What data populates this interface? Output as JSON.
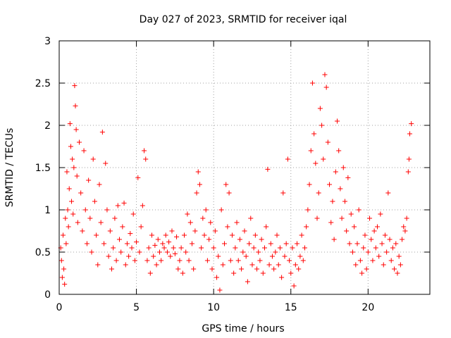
{
  "chart_data": {
    "type": "scatter",
    "title": "Day 027 of 2023, SRMTID for receiver iqal",
    "xlabel": "GPS time / hours",
    "ylabel": "SRMTID / TECUs",
    "xlim": [
      0,
      24
    ],
    "ylim": [
      0,
      3
    ],
    "xticks": [
      0,
      5,
      10,
      15,
      20
    ],
    "xtick_labels": [
      "0",
      "5",
      "10",
      "15",
      "20"
    ],
    "yticks": [
      0,
      0.5,
      1,
      1.5,
      2,
      2.5,
      3
    ],
    "ytick_labels": [
      "0",
      "0.5",
      "1",
      "1.5",
      "2",
      "2.5",
      "3"
    ],
    "grid": true,
    "marker": "plus",
    "color": "#ff0000",
    "series": [
      {
        "name": "SRMTID",
        "points": [
          [
            0.1,
            0.55
          ],
          [
            0.15,
            0.4
          ],
          [
            0.2,
            0.2
          ],
          [
            0.25,
            0.7
          ],
          [
            0.3,
            0.3
          ],
          [
            0.35,
            0.12
          ],
          [
            0.4,
            0.9
          ],
          [
            0.45,
            0.6
          ],
          [
            0.5,
            1.45
          ],
          [
            0.55,
            1.0
          ],
          [
            0.6,
            0.8
          ],
          [
            0.65,
            1.25
          ],
          [
            0.7,
            2.02
          ],
          [
            0.75,
            1.75
          ],
          [
            0.8,
            1.1
          ],
          [
            0.85,
            1.6
          ],
          [
            0.9,
            0.95
          ],
          [
            0.95,
            1.5
          ],
          [
            1.0,
            2.47
          ],
          [
            1.05,
            2.23
          ],
          [
            1.1,
            1.95
          ],
          [
            1.15,
            1.4
          ],
          [
            1.2,
            0.85
          ],
          [
            1.3,
            1.8
          ],
          [
            1.4,
            1.2
          ],
          [
            1.5,
            0.75
          ],
          [
            1.6,
            1.7
          ],
          [
            1.7,
            1.0
          ],
          [
            1.8,
            0.6
          ],
          [
            1.9,
            1.35
          ],
          [
            2.0,
            0.9
          ],
          [
            2.1,
            0.5
          ],
          [
            2.2,
            1.6
          ],
          [
            2.3,
            1.1
          ],
          [
            2.4,
            0.7
          ],
          [
            2.5,
            0.35
          ],
          [
            2.6,
            1.3
          ],
          [
            2.7,
            0.85
          ],
          [
            2.8,
            1.92
          ],
          [
            2.9,
            0.6
          ],
          [
            3.0,
            1.55
          ],
          [
            3.1,
            1.0
          ],
          [
            3.2,
            0.45
          ],
          [
            3.3,
            0.75
          ],
          [
            3.4,
            0.3
          ],
          [
            3.5,
            0.55
          ],
          [
            3.6,
            0.9
          ],
          [
            3.7,
            0.4
          ],
          [
            3.8,
            1.05
          ],
          [
            3.9,
            0.65
          ],
          [
            4.0,
            0.5
          ],
          [
            4.1,
            0.8
          ],
          [
            4.2,
            1.08
          ],
          [
            4.3,
            0.35
          ],
          [
            4.4,
            0.6
          ],
          [
            4.5,
            0.45
          ],
          [
            4.6,
            0.72
          ],
          [
            4.7,
            0.55
          ],
          [
            4.8,
            0.95
          ],
          [
            4.9,
            0.4
          ],
          [
            5.0,
            0.62
          ],
          [
            5.1,
            1.38
          ],
          [
            5.2,
            0.5
          ],
          [
            5.3,
            0.8
          ],
          [
            5.4,
            1.05
          ],
          [
            5.5,
            1.7
          ],
          [
            5.6,
            1.6
          ],
          [
            5.7,
            0.4
          ],
          [
            5.8,
            0.55
          ],
          [
            5.9,
            0.25
          ],
          [
            6.0,
            0.7
          ],
          [
            6.1,
            0.45
          ],
          [
            6.2,
            0.58
          ],
          [
            6.3,
            0.35
          ],
          [
            6.4,
            0.65
          ],
          [
            6.5,
            0.5
          ],
          [
            6.6,
            0.4
          ],
          [
            6.7,
            0.6
          ],
          [
            6.8,
            0.55
          ],
          [
            6.9,
            0.7
          ],
          [
            7.0,
            0.5
          ],
          [
            7.1,
            0.62
          ],
          [
            7.2,
            0.45
          ],
          [
            7.3,
            0.75
          ],
          [
            7.4,
            0.55
          ],
          [
            7.5,
            0.48
          ],
          [
            7.6,
            0.68
          ],
          [
            7.7,
            0.3
          ],
          [
            7.8,
            0.4
          ],
          [
            7.9,
            0.55
          ],
          [
            8.0,
            0.25
          ],
          [
            8.1,
            0.7
          ],
          [
            8.2,
            0.5
          ],
          [
            8.3,
            0.95
          ],
          [
            8.4,
            0.4
          ],
          [
            8.5,
            0.85
          ],
          [
            8.6,
            0.6
          ],
          [
            8.7,
            0.3
          ],
          [
            8.8,
            0.75
          ],
          [
            8.9,
            1.2
          ],
          [
            9.0,
            1.45
          ],
          [
            9.1,
            1.3
          ],
          [
            9.2,
            0.55
          ],
          [
            9.3,
            0.9
          ],
          [
            9.4,
            0.7
          ],
          [
            9.5,
            1.0
          ],
          [
            9.6,
            0.4
          ],
          [
            9.7,
            0.65
          ],
          [
            9.8,
            0.85
          ],
          [
            9.9,
            0.3
          ],
          [
            10.0,
            0.55
          ],
          [
            10.1,
            0.75
          ],
          [
            10.2,
            0.2
          ],
          [
            10.3,
            0.45
          ],
          [
            10.4,
            0.05
          ],
          [
            10.5,
            1.0
          ],
          [
            10.6,
            0.35
          ],
          [
            10.7,
            0.6
          ],
          [
            10.8,
            1.3
          ],
          [
            10.9,
            0.8
          ],
          [
            11.0,
            1.2
          ],
          [
            11.1,
            0.4
          ],
          [
            11.2,
            0.7
          ],
          [
            11.3,
            0.25
          ],
          [
            11.4,
            0.55
          ],
          [
            11.5,
            0.85
          ],
          [
            11.6,
            0.4
          ],
          [
            11.7,
            0.65
          ],
          [
            11.8,
            0.3
          ],
          [
            11.9,
            0.5
          ],
          [
            12.0,
            0.75
          ],
          [
            12.1,
            0.45
          ],
          [
            12.2,
            0.15
          ],
          [
            12.3,
            0.6
          ],
          [
            12.4,
            0.9
          ],
          [
            12.5,
            0.35
          ],
          [
            12.6,
            0.55
          ],
          [
            12.7,
            0.7
          ],
          [
            12.8,
            0.3
          ],
          [
            12.9,
            0.5
          ],
          [
            13.0,
            0.4
          ],
          [
            13.1,
            0.65
          ],
          [
            13.2,
            0.25
          ],
          [
            13.3,
            0.55
          ],
          [
            13.4,
            0.8
          ],
          [
            13.5,
            1.48
          ],
          [
            13.6,
            0.35
          ],
          [
            13.7,
            0.6
          ],
          [
            13.8,
            0.45
          ],
          [
            13.9,
            0.3
          ],
          [
            14.0,
            0.5
          ],
          [
            14.1,
            0.7
          ],
          [
            14.2,
            0.35
          ],
          [
            14.3,
            0.55
          ],
          [
            14.4,
            0.2
          ],
          [
            14.5,
            1.2
          ],
          [
            14.6,
            0.45
          ],
          [
            14.7,
            0.6
          ],
          [
            14.8,
            1.6
          ],
          [
            14.9,
            0.4
          ],
          [
            15.0,
            0.25
          ],
          [
            15.1,
            0.55
          ],
          [
            15.2,
            0.1
          ],
          [
            15.3,
            0.35
          ],
          [
            15.4,
            0.6
          ],
          [
            15.5,
            0.3
          ],
          [
            15.6,
            0.45
          ],
          [
            15.7,
            0.7
          ],
          [
            15.8,
            0.4
          ],
          [
            15.9,
            0.55
          ],
          [
            16.0,
            0.8
          ],
          [
            16.1,
            1.0
          ],
          [
            16.2,
            1.3
          ],
          [
            16.3,
            1.7
          ],
          [
            16.4,
            2.5
          ],
          [
            16.5,
            1.9
          ],
          [
            16.6,
            1.55
          ],
          [
            16.7,
            0.9
          ],
          [
            16.8,
            1.2
          ],
          [
            16.9,
            2.2
          ],
          [
            17.0,
            2.0
          ],
          [
            17.1,
            1.6
          ],
          [
            17.2,
            2.6
          ],
          [
            17.3,
            2.45
          ],
          [
            17.4,
            1.8
          ],
          [
            17.5,
            1.3
          ],
          [
            17.6,
            0.85
          ],
          [
            17.7,
            1.1
          ],
          [
            17.8,
            0.65
          ],
          [
            17.9,
            1.45
          ],
          [
            18.0,
            2.05
          ],
          [
            18.1,
            1.7
          ],
          [
            18.2,
            1.25
          ],
          [
            18.3,
            0.9
          ],
          [
            18.4,
            1.5
          ],
          [
            18.5,
            1.1
          ],
          [
            18.6,
            0.75
          ],
          [
            18.7,
            1.38
          ],
          [
            18.8,
            0.6
          ],
          [
            18.9,
            0.95
          ],
          [
            19.0,
            0.5
          ],
          [
            19.1,
            0.8
          ],
          [
            19.2,
            0.35
          ],
          [
            19.3,
            0.6
          ],
          [
            19.4,
            1.0
          ],
          [
            19.5,
            0.4
          ],
          [
            19.6,
            0.25
          ],
          [
            19.7,
            0.55
          ],
          [
            19.8,
            0.7
          ],
          [
            19.9,
            0.3
          ],
          [
            20.0,
            0.5
          ],
          [
            20.1,
            0.9
          ],
          [
            20.2,
            0.65
          ],
          [
            20.3,
            0.4
          ],
          [
            20.4,
            0.75
          ],
          [
            20.5,
            0.55
          ],
          [
            20.6,
            0.8
          ],
          [
            20.7,
            0.45
          ],
          [
            20.8,
            0.95
          ],
          [
            20.9,
            0.6
          ],
          [
            21.0,
            0.35
          ],
          [
            21.1,
            0.7
          ],
          [
            21.2,
            0.5
          ],
          [
            21.3,
            1.2
          ],
          [
            21.4,
            0.65
          ],
          [
            21.5,
            0.4
          ],
          [
            21.6,
            0.55
          ],
          [
            21.7,
            0.3
          ],
          [
            21.8,
            0.6
          ],
          [
            21.9,
            0.25
          ],
          [
            22.0,
            0.45
          ],
          [
            22.1,
            0.35
          ],
          [
            22.2,
            0.65
          ],
          [
            22.3,
            0.8
          ],
          [
            22.4,
            0.75
          ],
          [
            22.5,
            0.9
          ],
          [
            22.6,
            1.45
          ],
          [
            22.7,
            1.9
          ],
          [
            22.8,
            2.02
          ],
          [
            22.65,
            1.6
          ]
        ]
      }
    ]
  }
}
